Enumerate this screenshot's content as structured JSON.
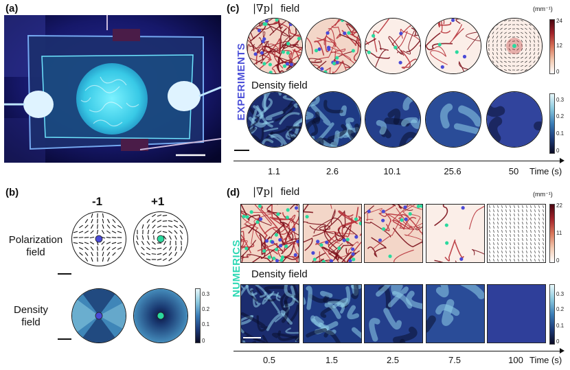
{
  "panel_a": {
    "label": "(a)"
  },
  "panel_b": {
    "label": "(b)",
    "charge_neg": "-1",
    "charge_pos": "+1",
    "pol_label_1": "Polarization",
    "pol_label_2": "field",
    "dens_label_1": "Density",
    "dens_label_2": "field",
    "cbar_ticks": [
      "0.3",
      "0.2",
      "0.1",
      "0"
    ]
  },
  "panel_c": {
    "label": "(c)",
    "grad_field_math": "|∇p|",
    "grad_field_word": "field",
    "unit": "(mm⁻¹)",
    "cbar_ticks_grad": [
      "24",
      "12",
      "0"
    ],
    "density_title": "Density field",
    "cbar_ticks_dens": [
      "0.3",
      "0.2",
      "0.1",
      "0"
    ],
    "row_label": "EXPERIMENTS",
    "times": [
      "1.1",
      "2.6",
      "10.1",
      "25.6",
      "50"
    ],
    "time_axis_label": "Time (s)"
  },
  "panel_d": {
    "label": "(d)",
    "grad_field_math": "|∇p|",
    "grad_field_word": "field",
    "unit": "(mm⁻¹)",
    "cbar_ticks_grad": [
      "22",
      "11",
      "0"
    ],
    "density_title": "Density field",
    "cbar_ticks_dens": [
      "0.3",
      "0.2",
      "0.1",
      "0"
    ],
    "row_label": "NUMERICS",
    "times": [
      "0.5",
      "1.5",
      "2.5",
      "7.5",
      "100"
    ],
    "time_axis_label": "Time (s)"
  },
  "colors": {
    "experiments_label": "#4b4fd8",
    "numerics_label": "#2fd8b4",
    "defect_neg": "#4a4ad6",
    "defect_pos": "#2bd99e"
  }
}
